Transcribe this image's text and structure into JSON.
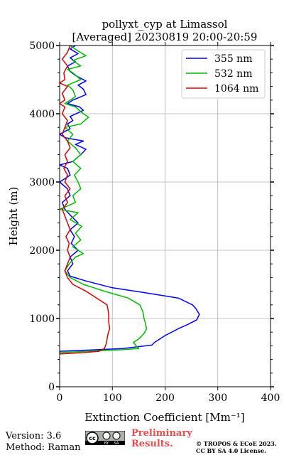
{
  "footer": {
    "version": "Version: 3.6",
    "method": "Method: Raman",
    "preliminary_line1": "Preliminary",
    "preliminary_line2": "Results.",
    "copyright_line1": "© TROPOS & ECoE 2023.",
    "copyright_line2": "CC BY SA 4.0 License.",
    "license_badge": [
      "cc",
      "BY",
      "SA"
    ]
  },
  "chart_data": {
    "type": "line",
    "title": "pollyxt_cyp at Limassol",
    "subtitle": "[Averaged] 20230819 20:00-20:59",
    "xlabel": "Extinction Coefficient [Mm⁻¹]",
    "ylabel": "Height (m)",
    "xlim": [
      0,
      400
    ],
    "ylim": [
      0,
      5000
    ],
    "xticks": [
      0,
      100,
      200,
      300,
      400
    ],
    "yticks": [
      0,
      1000,
      2000,
      3000,
      4000,
      5000
    ],
    "grid": true,
    "legend_position": "top-right",
    "series": [
      {
        "name": "355 nm",
        "color": "#0000ff",
        "points": [
          [
            0,
            520
          ],
          [
            60,
            540
          ],
          [
            120,
            560
          ],
          [
            175,
            610
          ],
          [
            180,
            650
          ],
          [
            200,
            750
          ],
          [
            225,
            850
          ],
          [
            245,
            920
          ],
          [
            260,
            980
          ],
          [
            265,
            1060
          ],
          [
            262,
            1100
          ],
          [
            258,
            1150
          ],
          [
            252,
            1200
          ],
          [
            225,
            1300
          ],
          [
            160,
            1380
          ],
          [
            100,
            1450
          ],
          [
            50,
            1550
          ],
          [
            20,
            1620
          ],
          [
            15,
            1700
          ],
          [
            25,
            1800
          ],
          [
            20,
            1900
          ],
          [
            35,
            2000
          ],
          [
            22,
            2100
          ],
          [
            28,
            2200
          ],
          [
            20,
            2300
          ],
          [
            35,
            2400
          ],
          [
            22,
            2500
          ],
          [
            10,
            2600
          ],
          [
            5,
            2700
          ],
          [
            20,
            2800
          ],
          [
            15,
            2900
          ],
          [
            0,
            3000
          ],
          [
            20,
            3100
          ],
          [
            15,
            3200
          ],
          [
            0,
            3250
          ],
          [
            25,
            3300
          ],
          [
            40,
            3400
          ],
          [
            50,
            3480
          ],
          [
            30,
            3550
          ],
          [
            45,
            3600
          ],
          [
            10,
            3650
          ],
          [
            0,
            3700
          ],
          [
            20,
            3780
          ],
          [
            15,
            3850
          ],
          [
            25,
            3900
          ],
          [
            20,
            3960
          ],
          [
            45,
            4050
          ],
          [
            38,
            4100
          ],
          [
            15,
            4150
          ],
          [
            25,
            4200
          ],
          [
            50,
            4280
          ],
          [
            45,
            4360
          ],
          [
            35,
            4420
          ],
          [
            50,
            4480
          ],
          [
            30,
            4560
          ],
          [
            20,
            4620
          ],
          [
            15,
            4700
          ],
          [
            30,
            4760
          ],
          [
            20,
            4820
          ],
          [
            35,
            4880
          ],
          [
            20,
            4950
          ],
          [
            30,
            5000
          ]
        ]
      },
      {
        "name": "532 nm",
        "color": "#00bb00",
        "points": [
          [
            0,
            500
          ],
          [
            50,
            520
          ],
          [
            110,
            540
          ],
          [
            150,
            560
          ],
          [
            145,
            600
          ],
          [
            140,
            650
          ],
          [
            150,
            700
          ],
          [
            160,
            780
          ],
          [
            165,
            850
          ],
          [
            162,
            950
          ],
          [
            160,
            1000
          ],
          [
            158,
            1100
          ],
          [
            152,
            1200
          ],
          [
            130,
            1300
          ],
          [
            85,
            1400
          ],
          [
            45,
            1500
          ],
          [
            20,
            1600
          ],
          [
            10,
            1700
          ],
          [
            18,
            1800
          ],
          [
            30,
            1900
          ],
          [
            45,
            1950
          ],
          [
            25,
            2050
          ],
          [
            40,
            2150
          ],
          [
            30,
            2250
          ],
          [
            42,
            2350
          ],
          [
            20,
            2450
          ],
          [
            35,
            2550
          ],
          [
            0,
            2600
          ],
          [
            30,
            2700
          ],
          [
            25,
            2800
          ],
          [
            40,
            2900
          ],
          [
            35,
            3000
          ],
          [
            28,
            3100
          ],
          [
            40,
            3200
          ],
          [
            25,
            3300
          ],
          [
            40,
            3400
          ],
          [
            30,
            3500
          ],
          [
            15,
            3600
          ],
          [
            25,
            3700
          ],
          [
            10,
            3800
          ],
          [
            40,
            3850
          ],
          [
            55,
            3950
          ],
          [
            45,
            4000
          ],
          [
            30,
            4100
          ],
          [
            10,
            4150
          ],
          [
            30,
            4250
          ],
          [
            25,
            4350
          ],
          [
            15,
            4420
          ],
          [
            40,
            4500
          ],
          [
            25,
            4600
          ],
          [
            15,
            4650
          ],
          [
            40,
            4700
          ],
          [
            25,
            4780
          ],
          [
            50,
            4850
          ],
          [
            35,
            4920
          ],
          [
            20,
            5000
          ]
        ]
      },
      {
        "name": "1064 nm",
        "color": "#dd0000",
        "points": [
          [
            0,
            480
          ],
          [
            45,
            500
          ],
          [
            75,
            520
          ],
          [
            85,
            560
          ],
          [
            88,
            620
          ],
          [
            90,
            700
          ],
          [
            92,
            780
          ],
          [
            95,
            850
          ],
          [
            93,
            950
          ],
          [
            93,
            1050
          ],
          [
            92,
            1120
          ],
          [
            90,
            1200
          ],
          [
            70,
            1300
          ],
          [
            50,
            1400
          ],
          [
            25,
            1500
          ],
          [
            15,
            1600
          ],
          [
            10,
            1700
          ],
          [
            15,
            1800
          ],
          [
            20,
            1900
          ],
          [
            15,
            2000
          ],
          [
            18,
            2100
          ],
          [
            12,
            2200
          ],
          [
            20,
            2300
          ],
          [
            15,
            2400
          ],
          [
            10,
            2500
          ],
          [
            5,
            2600
          ],
          [
            15,
            2700
          ],
          [
            10,
            2800
          ],
          [
            20,
            2900
          ],
          [
            10,
            3000
          ],
          [
            15,
            3100
          ],
          [
            8,
            3200
          ],
          [
            15,
            3300
          ],
          [
            10,
            3400
          ],
          [
            20,
            3500
          ],
          [
            15,
            3600
          ],
          [
            5,
            3700
          ],
          [
            10,
            3800
          ],
          [
            15,
            3900
          ],
          [
            5,
            4000
          ],
          [
            10,
            4100
          ],
          [
            0,
            4150
          ],
          [
            10,
            4200
          ],
          [
            5,
            4300
          ],
          [
            15,
            4400
          ],
          [
            0,
            4450
          ],
          [
            10,
            4500
          ],
          [
            8,
            4600
          ],
          [
            15,
            4700
          ],
          [
            5,
            4800
          ],
          [
            15,
            4900
          ],
          [
            20,
            5000
          ]
        ]
      }
    ]
  }
}
